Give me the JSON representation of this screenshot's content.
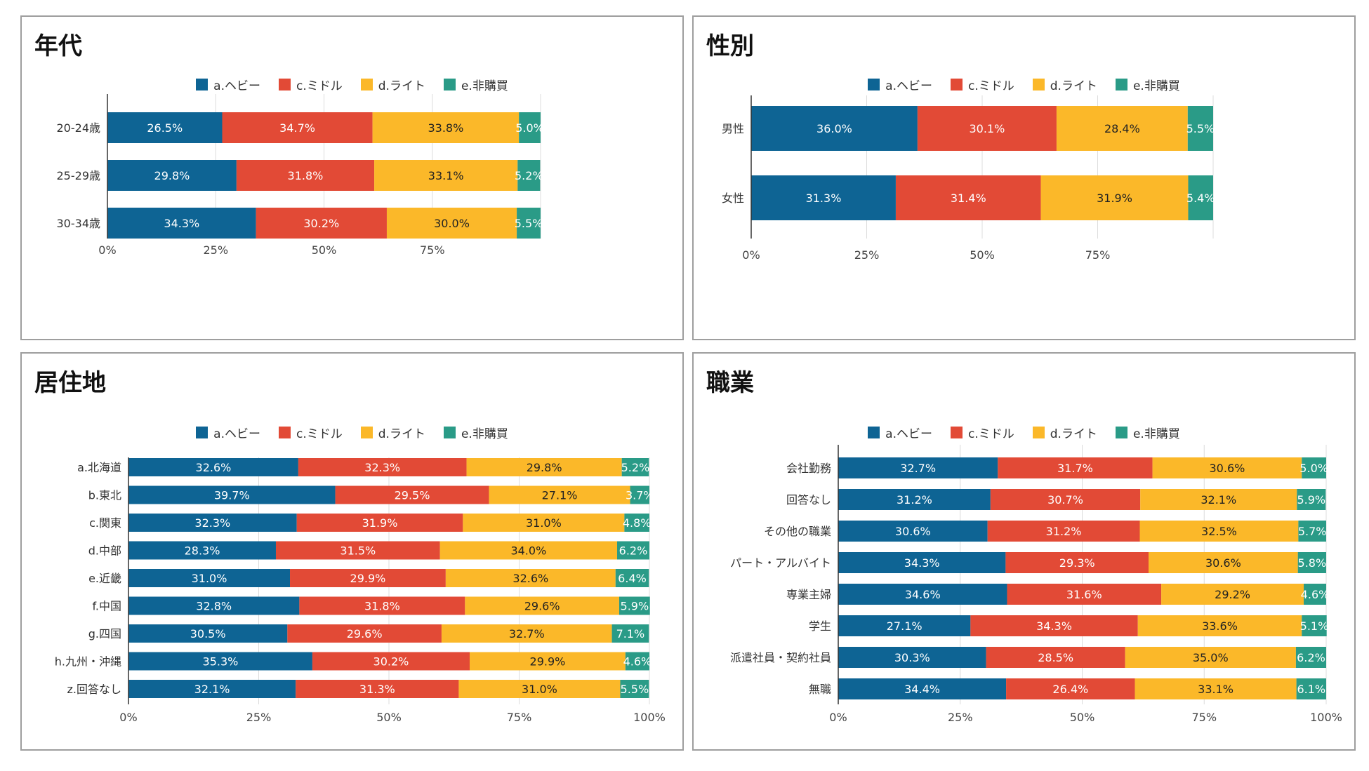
{
  "legend": [
    {
      "key": "a",
      "label": "a.ヘビー",
      "color": "#0e6494"
    },
    {
      "key": "c",
      "label": "c.ミドル",
      "color": "#e24a36"
    },
    {
      "key": "d",
      "label": "d.ライト",
      "color": "#fbb829"
    },
    {
      "key": "e",
      "label": "e.非購買",
      "color": "#2a9b87"
    }
  ],
  "chart_data": [
    {
      "id": "age",
      "type": "bar",
      "orientation": "horizontal",
      "stacked": true,
      "title": "年代",
      "categories": [
        "20-24歳",
        "25-29歳",
        "30-34歳"
      ],
      "series": [
        {
          "name": "a.ヘビー",
          "values": [
            26.5,
            29.8,
            34.3
          ],
          "labels": [
            "26.5%",
            "29.8%",
            "34.3%"
          ]
        },
        {
          "name": "c.ミドル",
          "values": [
            34.7,
            31.8,
            30.2
          ],
          "labels": [
            "34.7%",
            "31.8%",
            "30.2%"
          ]
        },
        {
          "name": "d.ライト",
          "values": [
            33.8,
            33.1,
            30.0
          ],
          "labels": [
            "33.8%",
            "33.1%",
            "30.0%"
          ]
        },
        {
          "name": "e.非購買",
          "values": [
            5.0,
            5.2,
            5.5
          ],
          "labels": [
            "5.0%",
            "5.2%",
            "5.5%"
          ]
        }
      ],
      "xticks": [
        "0%",
        "25%",
        "50%",
        "75%"
      ],
      "xlim": [
        0,
        100
      ]
    },
    {
      "id": "gender",
      "type": "bar",
      "orientation": "horizontal",
      "stacked": true,
      "title": "性別",
      "categories": [
        "男性",
        "女性"
      ],
      "series": [
        {
          "name": "a.ヘビー",
          "values": [
            36.0,
            31.3
          ],
          "labels": [
            "36.0%",
            "31.3%"
          ]
        },
        {
          "name": "c.ミドル",
          "values": [
            30.1,
            31.4
          ],
          "labels": [
            "30.1%",
            "31.4%"
          ]
        },
        {
          "name": "d.ライト",
          "values": [
            28.4,
            31.9
          ],
          "labels": [
            "28.4%",
            "31.9%"
          ]
        },
        {
          "name": "e.非購買",
          "values": [
            5.5,
            5.4
          ],
          "labels": [
            "5.5%",
            "5.4%"
          ]
        }
      ],
      "xticks": [
        "0%",
        "25%",
        "50%",
        "75%"
      ],
      "xlim": [
        0,
        100
      ]
    },
    {
      "id": "region",
      "type": "bar",
      "orientation": "horizontal",
      "stacked": true,
      "title": "居住地",
      "categories": [
        "a.北海道",
        "b.東北",
        "c.関東",
        "d.中部",
        "e.近畿",
        "f.中国",
        "g.四国",
        "h.九州・沖縄",
        "z.回答なし"
      ],
      "series": [
        {
          "name": "a.ヘビー",
          "values": [
            32.6,
            39.7,
            32.3,
            28.3,
            31.0,
            32.8,
            30.5,
            35.3,
            32.1
          ],
          "labels": [
            "32.6%",
            "39.7%",
            "32.3%",
            "28.3%",
            "31.0%",
            "32.8%",
            "30.5%",
            "35.3%",
            "32.1%"
          ]
        },
        {
          "name": "c.ミドル",
          "values": [
            32.3,
            29.5,
            31.9,
            31.5,
            29.9,
            31.8,
            29.6,
            30.2,
            31.3
          ],
          "labels": [
            "32.3%",
            "29.5%",
            "31.9%",
            "31.5%",
            "29.9%",
            "31.8%",
            "29.6%",
            "30.2%",
            "31.3%"
          ]
        },
        {
          "name": "d.ライト",
          "values": [
            29.8,
            27.1,
            31.0,
            34.0,
            32.6,
            29.6,
            32.7,
            29.9,
            31.0
          ],
          "labels": [
            "29.8%",
            "27.1%",
            "31.0%",
            "34.0%",
            "32.6%",
            "29.6%",
            "32.7%",
            "29.9%",
            "31.0%"
          ]
        },
        {
          "name": "e.非購買",
          "values": [
            5.2,
            3.7,
            4.8,
            6.2,
            6.4,
            5.9,
            7.1,
            4.6,
            5.5
          ],
          "labels": [
            "5.2%",
            "3.7%",
            "4.8%",
            "6.2%",
            "6.4%",
            "5.9%",
            "7.1%",
            "4.6%",
            "5.5%"
          ]
        }
      ],
      "xticks": [
        "0%",
        "25%",
        "50%",
        "75%",
        "100%"
      ],
      "xlim": [
        0,
        100
      ]
    },
    {
      "id": "occupation",
      "type": "bar",
      "orientation": "horizontal",
      "stacked": true,
      "title": "職業",
      "categories": [
        "会社勤務",
        "回答なし",
        "その他の職業",
        "パート・アルバイト",
        "専業主婦",
        "学生",
        "派遣社員・契約社員",
        "無職"
      ],
      "series": [
        {
          "name": "a.ヘビー",
          "values": [
            32.7,
            31.2,
            30.6,
            34.3,
            34.6,
            27.1,
            30.3,
            34.4
          ],
          "labels": [
            "32.7%",
            "31.2%",
            "30.6%",
            "34.3%",
            "34.6%",
            "27.1%",
            "30.3%",
            "34.4%"
          ]
        },
        {
          "name": "c.ミドル",
          "values": [
            31.7,
            30.7,
            31.2,
            29.3,
            31.6,
            34.3,
            28.5,
            26.4
          ],
          "labels": [
            "31.7%",
            "30.7%",
            "31.2%",
            "29.3%",
            "31.6%",
            "34.3%",
            "28.5%",
            "26.4%"
          ]
        },
        {
          "name": "d.ライト",
          "values": [
            30.6,
            32.1,
            32.5,
            30.6,
            29.2,
            33.6,
            35.0,
            33.1
          ],
          "labels": [
            "30.6%",
            "32.1%",
            "32.5%",
            "30.6%",
            "29.2%",
            "33.6%",
            "35.0%",
            "33.1%"
          ]
        },
        {
          "name": "e.非購買",
          "values": [
            5.0,
            5.9,
            5.7,
            5.8,
            4.6,
            5.1,
            6.2,
            6.1
          ],
          "labels": [
            "5.0%",
            "5.9%",
            "5.7%",
            "5.8%",
            "4.6%",
            "5.1%",
            "6.2%",
            "6.1%"
          ]
        }
      ],
      "xticks": [
        "0%",
        "25%",
        "50%",
        "75%",
        "100%"
      ],
      "xlim": [
        0,
        100
      ]
    }
  ]
}
